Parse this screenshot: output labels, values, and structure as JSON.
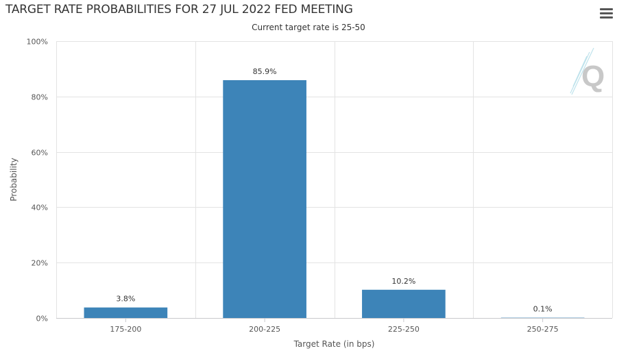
{
  "header": {
    "title": "TARGET RATE PROBABILITIES FOR 27 JUL 2022 FED MEETING",
    "subtitle": "Current target rate is 25-50",
    "menu_icon": "hamburger-menu-icon",
    "logo_icon": "q-logo-icon",
    "logo_text": "Q"
  },
  "colors": {
    "bar": "#3d84b8",
    "grid": "#e3e3e3",
    "axis": "#c8c8cc",
    "text": "#333333",
    "axis_text": "#555555"
  },
  "chart_data": {
    "type": "bar",
    "title": "TARGET RATE PROBABILITIES FOR 27 JUL 2022 FED MEETING",
    "subtitle": "Current target rate is 25-50",
    "xlabel": "Target Rate (in bps)",
    "ylabel": "Probability",
    "categories": [
      "175-200",
      "200-225",
      "225-250",
      "250-275"
    ],
    "values": [
      3.8,
      85.9,
      10.2,
      0.1
    ],
    "data_labels": [
      "3.8%",
      "85.9%",
      "10.2%",
      "0.1%"
    ],
    "ylim": [
      0,
      100
    ],
    "yticks": [
      0,
      20,
      40,
      60,
      80,
      100
    ],
    "ytick_labels": [
      "0%",
      "20%",
      "40%",
      "60%",
      "80%",
      "100%"
    ],
    "grid": true,
    "legend": "none"
  }
}
